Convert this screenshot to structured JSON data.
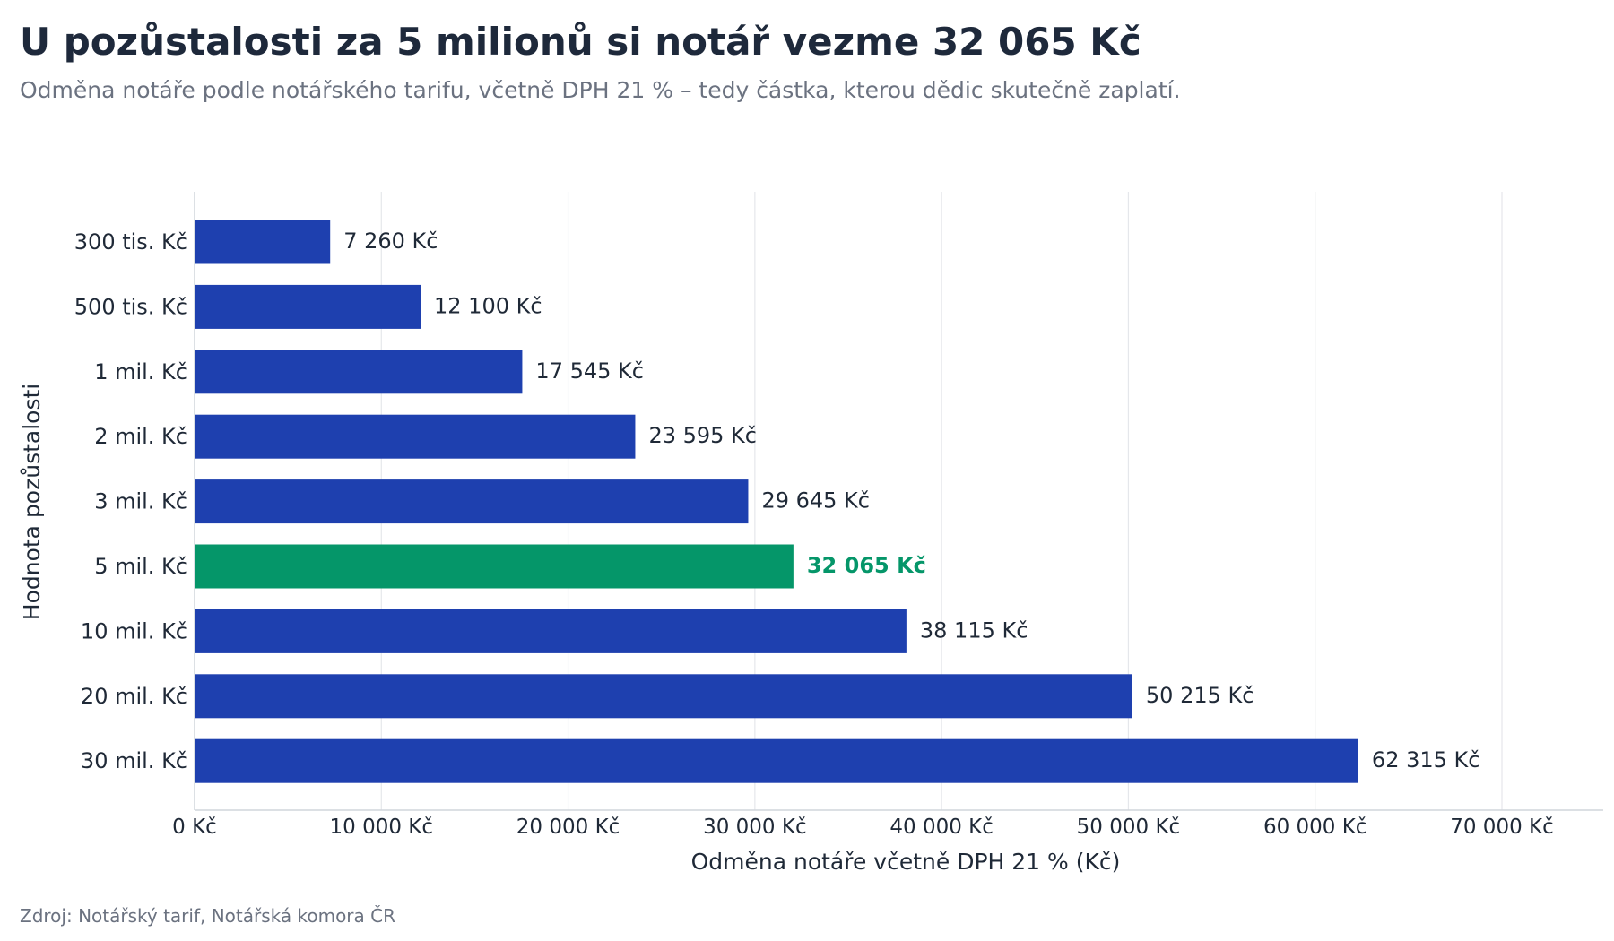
{
  "title": "U pozůstalosti za 5 milionů si notář vezme 32 065 Kč",
  "subtitle": "Odměna notáře podle notářského tarifu, včetně DPH 21 % – tedy částka, kterou dědic skutečně zaplatí.",
  "source": "Zdroj: Notářský tarif, Notářská komora ČR",
  "chart_data": {
    "type": "bar",
    "orientation": "horizontal",
    "xlabel": "Odměna notáře včetně DPH 21 % (Kč)",
    "ylabel": "Hodnota pozůstalosti",
    "xlim": [
      0,
      77000
    ],
    "x_ticks": [
      0,
      10000,
      20000,
      30000,
      40000,
      50000,
      60000,
      70000
    ],
    "x_tick_labels": [
      "0 Kč",
      "10 000 Kč",
      "20 000 Kč",
      "30 000 Kč",
      "40 000 Kč",
      "50 000 Kč",
      "60 000 Kč",
      "70 000 Kč"
    ],
    "grid": "vertical",
    "categories": [
      "300 tis. Kč",
      "500 tis. Kč",
      "1 mil. Kč",
      "2 mil. Kč",
      "3 mil. Kč",
      "5 mil. Kč",
      "10 mil. Kč",
      "20 mil. Kč",
      "30 mil. Kč"
    ],
    "values": [
      7260,
      12100,
      17545,
      23595,
      29645,
      32065,
      38115,
      50215,
      62315
    ],
    "value_labels": [
      "7 260 Kč",
      "12 100 Kč",
      "17 545 Kč",
      "23 595 Kč",
      "29 645 Kč",
      "32 065 Kč",
      "38 115 Kč",
      "50 215 Kč",
      "62 315 Kč"
    ],
    "highlight_category": "5 mil. Kč",
    "colors": {
      "bar": "#1e40af",
      "highlight": "#059669",
      "grid": "#e5e7eb",
      "axis": "#d1d5db",
      "text": "#1f2937"
    }
  }
}
